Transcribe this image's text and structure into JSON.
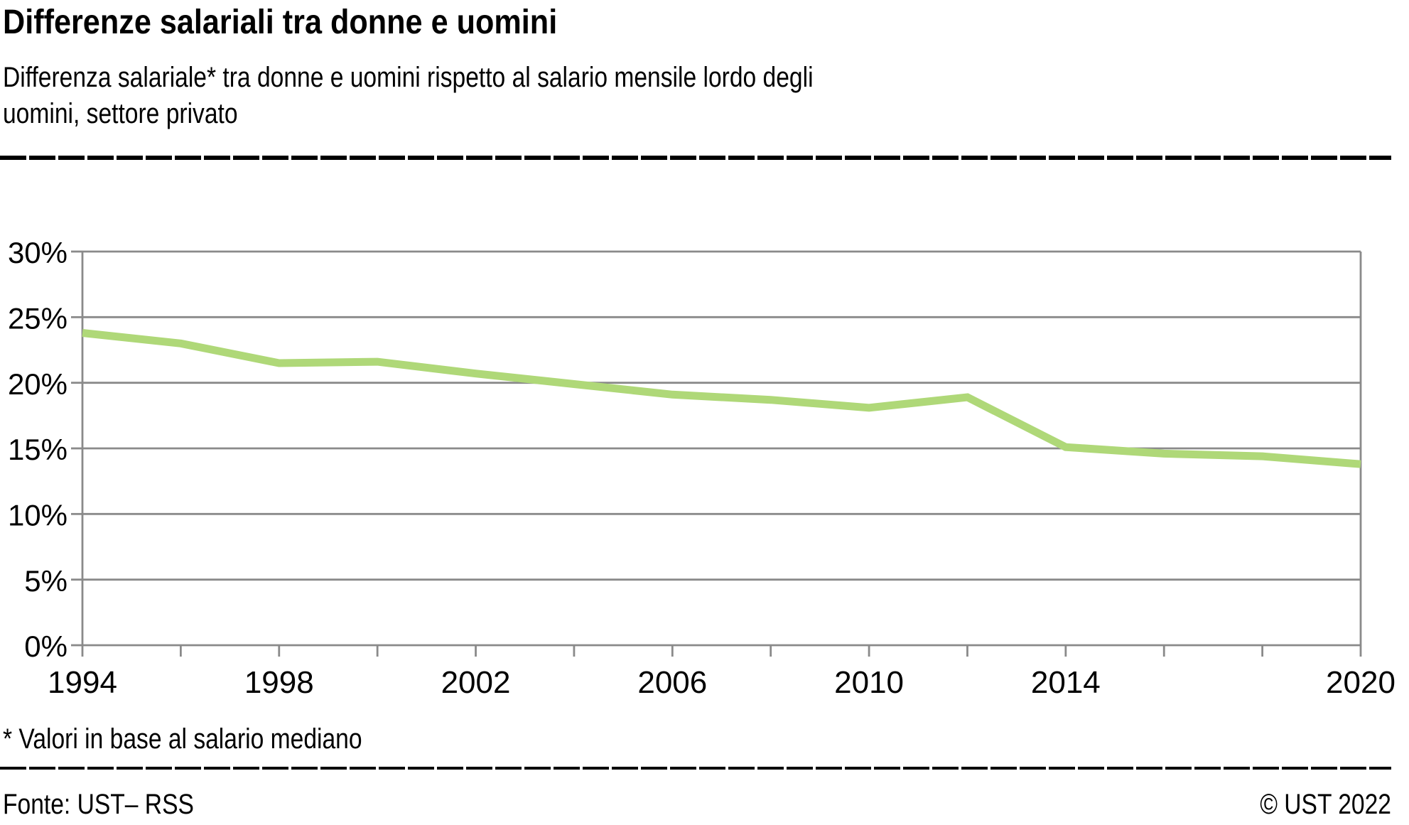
{
  "header": {
    "title": "Differenze salariali tra donne e uomini",
    "subtitle": "Differenza salariale* tra donne e uomini rispetto al salario mensile lordo degli\nuomini, settore privato"
  },
  "footnote": "* Valori in base al salario mediano",
  "footer": {
    "source": "Fonte: UST– RSS",
    "copyright": "© UST 2022"
  },
  "colors": {
    "line": "#afd878",
    "grid": "#8a8a8a",
    "text": "#000000",
    "rule": "#000000"
  },
  "chart_data": {
    "type": "line",
    "title": "Differenze salariali tra donne e uomini",
    "x": [
      1994,
      1996,
      1998,
      2000,
      2002,
      2004,
      2006,
      2008,
      2010,
      2012,
      2014,
      2016,
      2018,
      2020
    ],
    "series": [
      {
        "name": "Differenza salariale (settore privato)",
        "values": [
          23.8,
          23.0,
          21.5,
          21.6,
          20.7,
          19.9,
          19.1,
          18.7,
          18.1,
          18.9,
          15.1,
          14.6,
          14.4,
          13.8
        ]
      }
    ],
    "xlabel": "",
    "ylabel": "",
    "xlim": [
      1994,
      2020
    ],
    "ylim": [
      0,
      30
    ],
    "ytick_step": 5,
    "ytick_suffix": "%",
    "yticks": [
      0,
      5,
      10,
      15,
      20,
      25,
      30
    ],
    "xticks_labeled": [
      1994,
      1998,
      2002,
      2006,
      2010,
      2014,
      2020
    ],
    "xtick_minor_step": 2,
    "grid": "horizontal",
    "legend_position": "none"
  }
}
